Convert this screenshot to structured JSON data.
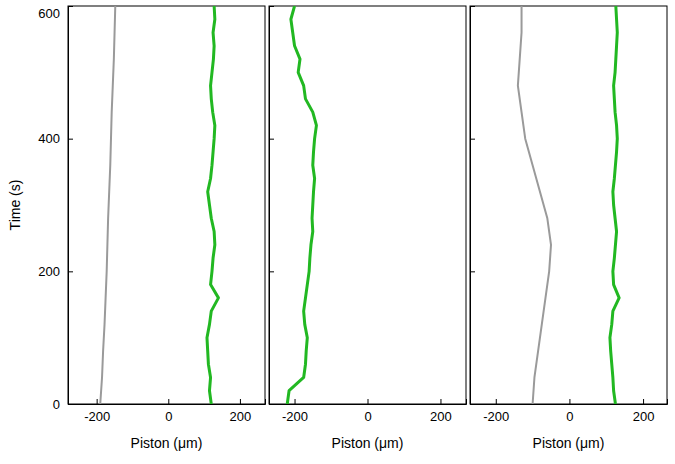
{
  "chart_data": [
    {
      "type": "line",
      "y_label": "Time (s)",
      "x_label": "Piston (μm)",
      "xlim": [
        -280,
        270
      ],
      "ylim": [
        0,
        600
      ],
      "xticks": [
        -200,
        0,
        200
      ],
      "yticks": [
        0,
        200,
        400,
        600
      ],
      "series": [
        {
          "color": "#9a9a9a",
          "line_style": "solid",
          "x": [
            -190,
            -185,
            -182,
            -178,
            -175,
            -172,
            -170,
            -168,
            -165,
            -162,
            -160,
            -158,
            -155,
            -152,
            -150,
            -148
          ],
          "y": [
            0,
            40,
            80,
            120,
            160,
            200,
            240,
            280,
            320,
            360,
            400,
            440,
            480,
            520,
            560,
            600
          ]
        },
        {
          "color": "#22b822",
          "line_style": "solid",
          "x": [
            120,
            115,
            118,
            112,
            110,
            108,
            115,
            120,
            140,
            118,
            122,
            125,
            130,
            128,
            120,
            115,
            110,
            118,
            122,
            125,
            128,
            130,
            124,
            120,
            118,
            122,
            126,
            128,
            125,
            130,
            128
          ],
          "y": [
            0,
            20,
            40,
            60,
            80,
            100,
            120,
            140,
            160,
            180,
            200,
            220,
            240,
            260,
            280,
            300,
            320,
            340,
            360,
            380,
            400,
            420,
            440,
            460,
            480,
            500,
            520,
            540,
            560,
            580,
            600
          ]
        }
      ]
    },
    {
      "type": "line",
      "x_label": "Piston (μm)",
      "tick_labels": "x",
      "xlim": [
        -270,
        270
      ],
      "ylim": [
        0,
        600
      ],
      "xticks": [
        -200,
        0,
        200
      ],
      "yticks": [
        0,
        200,
        400,
        600
      ],
      "series": [
        {
          "color": "#22b822",
          "line_style": "solid",
          "x": [
            -220,
            -215,
            -175,
            -170,
            -168,
            -165,
            -172,
            -175,
            -170,
            -165,
            -160,
            -158,
            -155,
            -150,
            -152,
            -150,
            -148,
            -145,
            -150,
            -148,
            -145,
            -140,
            -150,
            -170,
            -175,
            -190,
            -185,
            -200,
            -205,
            -210,
            -200
          ],
          "y": [
            0,
            20,
            40,
            60,
            80,
            100,
            120,
            140,
            160,
            180,
            200,
            220,
            240,
            260,
            280,
            300,
            320,
            340,
            360,
            380,
            400,
            420,
            440,
            460,
            480,
            500,
            520,
            540,
            560,
            580,
            600
          ]
        }
      ]
    },
    {
      "type": "line",
      "x_label": "Piston (μm)",
      "tick_labels": "x",
      "xlim": [
        -270,
        265
      ],
      "ylim": [
        0,
        600
      ],
      "xticks": [
        -200,
        0,
        200
      ],
      "yticks": [
        0,
        200,
        400,
        600
      ],
      "series": [
        {
          "color": "#9a9a9a",
          "line_style": "solid",
          "x": [
            -100,
            -95,
            -85,
            -75,
            -65,
            -55,
            -50,
            -60,
            -80,
            -100,
            -120,
            -130,
            -140,
            -135,
            -130,
            -130
          ],
          "y": [
            0,
            40,
            80,
            120,
            160,
            200,
            240,
            280,
            320,
            360,
            400,
            440,
            480,
            520,
            560,
            600
          ]
        },
        {
          "color": "#22b822",
          "line_style": "solid",
          "x": [
            125,
            120,
            118,
            115,
            112,
            110,
            115,
            118,
            135,
            120,
            118,
            122,
            125,
            128,
            124,
            120,
            118,
            122,
            125,
            128,
            130,
            128,
            124,
            122,
            120,
            124,
            126,
            128,
            130,
            128,
            126
          ],
          "y": [
            0,
            20,
            40,
            60,
            80,
            100,
            120,
            140,
            160,
            180,
            200,
            220,
            240,
            260,
            280,
            300,
            320,
            340,
            360,
            380,
            400,
            420,
            440,
            460,
            480,
            500,
            520,
            540,
            560,
            580,
            600
          ]
        }
      ]
    }
  ]
}
